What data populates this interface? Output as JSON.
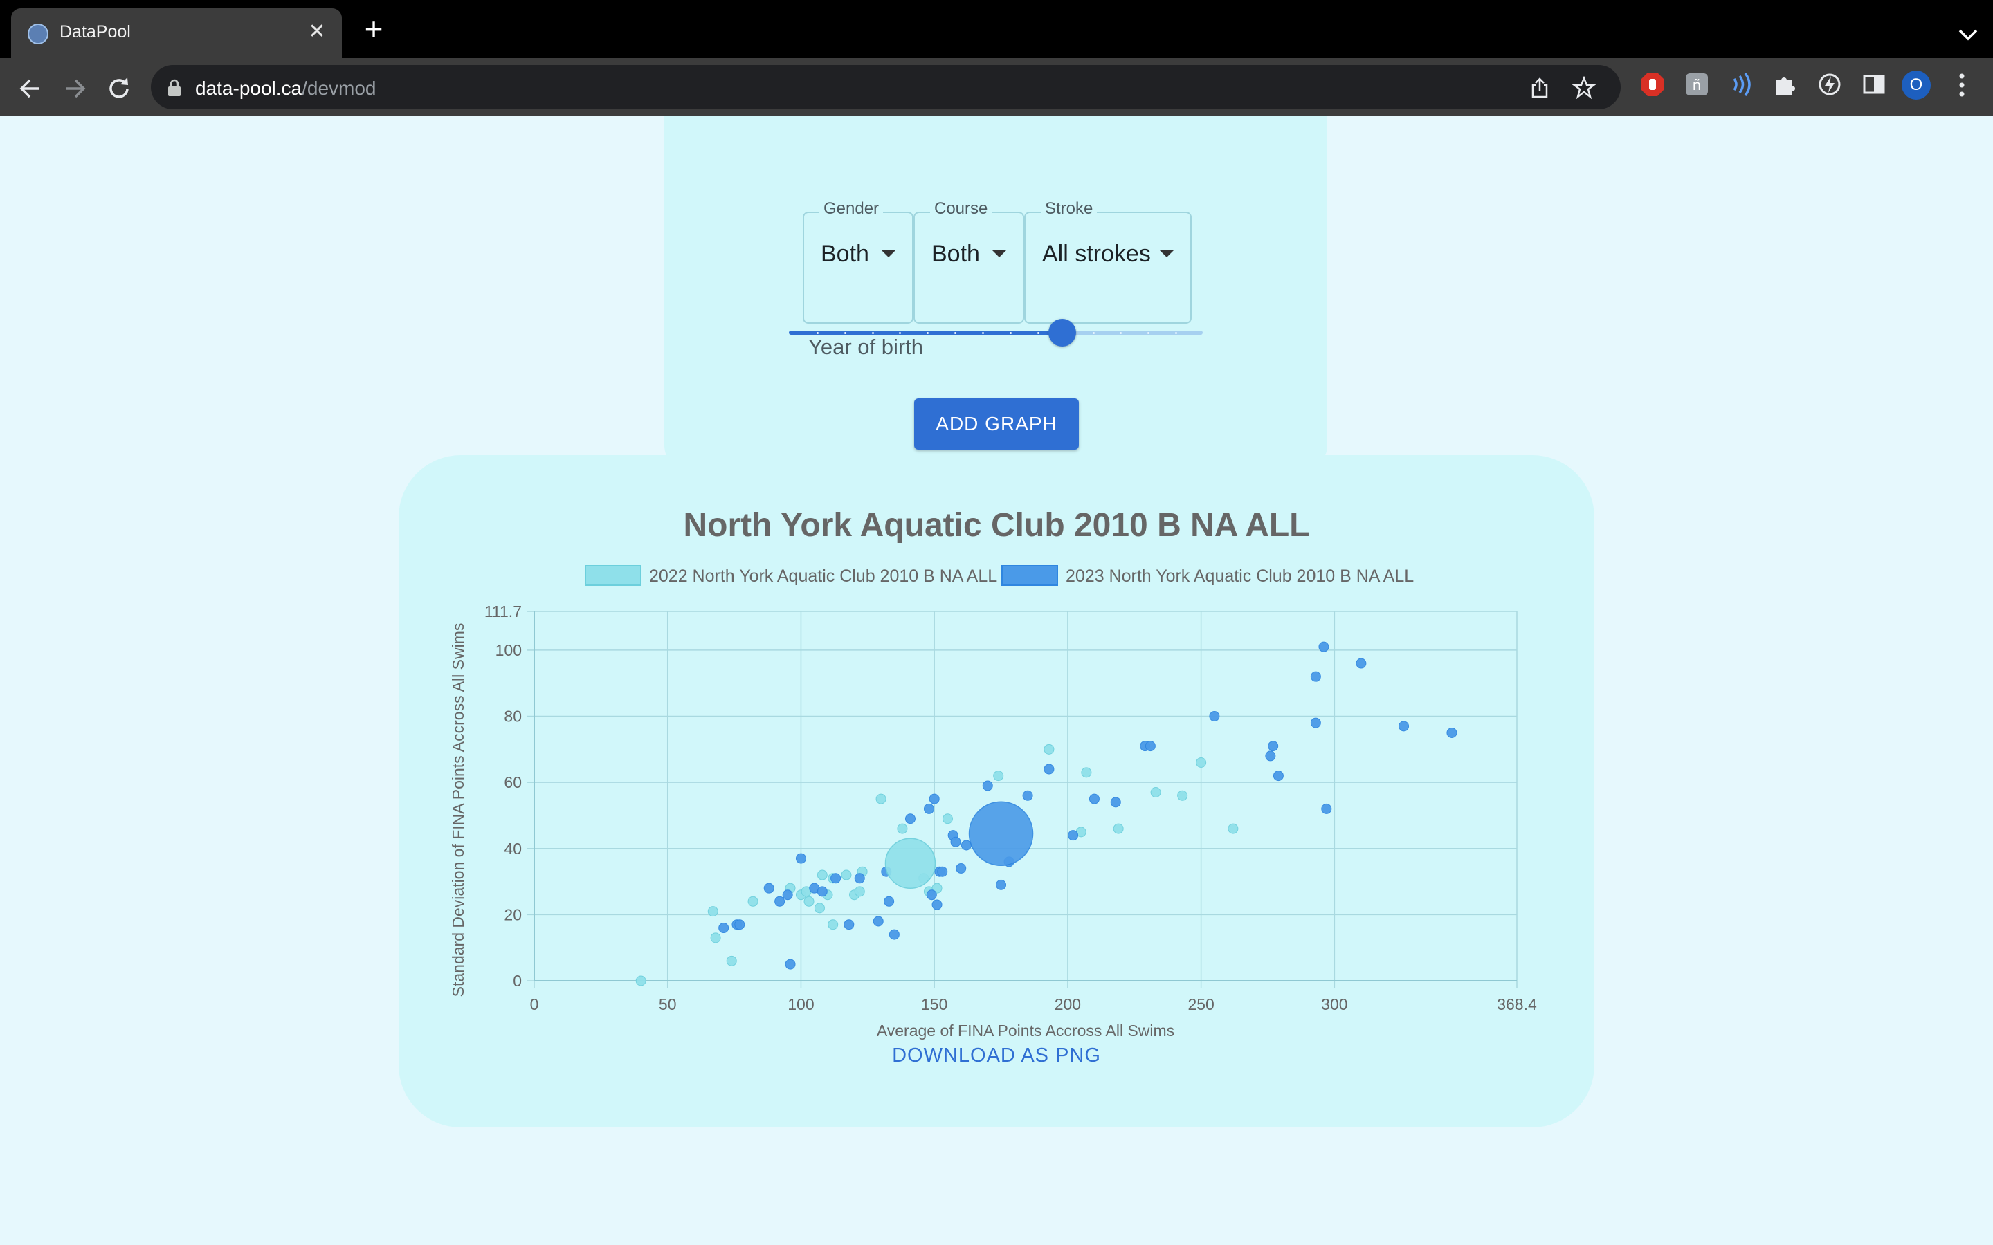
{
  "browser": {
    "tab_title": "DataPool",
    "url_host": "data-pool.ca",
    "url_path": "/devmod",
    "profile_initial": "O"
  },
  "form": {
    "gender": {
      "label": "Gender",
      "value": "Both"
    },
    "course": {
      "label": "Course",
      "value": "Both"
    },
    "stroke": {
      "label": "Stroke",
      "value": "All strokes"
    },
    "slider_label": "Year of birth",
    "slider_level": 0.66,
    "add_button": "ADD GRAPH"
  },
  "chart_card": {
    "download_label": "DOWNLOAD AS PNG"
  },
  "colors": {
    "series_2022": "#8fe0ea",
    "series_2023": "#4a9ae8",
    "accent": "#2f6fd3"
  },
  "chart_data": {
    "type": "scatter",
    "title": "North York Aquatic Club 2010 B NA ALL",
    "xlabel": "Average of FINA Points Accross All Swims",
    "ylabel": "Standard Deviation of FINA Points Accross All Swims",
    "xlim": [
      0,
      368.4
    ],
    "ylim": [
      0,
      111.7
    ],
    "x_ticks": [
      "0",
      "50",
      "100",
      "150",
      "200",
      "250",
      "300",
      "368.4"
    ],
    "y_ticks": [
      "0",
      "20",
      "40",
      "60",
      "80",
      "100",
      "111.7"
    ],
    "x_tick_values": [
      0,
      50,
      100,
      150,
      200,
      250,
      300,
      368.4
    ],
    "y_tick_values": [
      0,
      20,
      40,
      60,
      80,
      100,
      111.7
    ],
    "legend_position": "top",
    "grid": true,
    "series": [
      {
        "name": "2022 North York Aquatic Club 2010 B NA ALL",
        "summary": {
          "x": 141,
          "y": 35.5
        },
        "points": [
          [
            40,
            0
          ],
          [
            67,
            21
          ],
          [
            68,
            13
          ],
          [
            74,
            6
          ],
          [
            82,
            24
          ],
          [
            96,
            28
          ],
          [
            100,
            26
          ],
          [
            102,
            27
          ],
          [
            103,
            24
          ],
          [
            107,
            22
          ],
          [
            108,
            32
          ],
          [
            110,
            26
          ],
          [
            112,
            31
          ],
          [
            112,
            17
          ],
          [
            117,
            32
          ],
          [
            120,
            26
          ],
          [
            122,
            27
          ],
          [
            123,
            33
          ],
          [
            130,
            55
          ],
          [
            138,
            46
          ],
          [
            146,
            31
          ],
          [
            148,
            27
          ],
          [
            151,
            28
          ],
          [
            155,
            49
          ],
          [
            174,
            62
          ],
          [
            193,
            70
          ],
          [
            207,
            63
          ],
          [
            205,
            45
          ],
          [
            219,
            46
          ],
          [
            233,
            57
          ],
          [
            243,
            56
          ],
          [
            250,
            66
          ],
          [
            262,
            46
          ]
        ]
      },
      {
        "name": "2023 North York Aquatic Club 2010 B NA ALL",
        "summary": {
          "x": 175,
          "y": 44.5
        },
        "points": [
          [
            71,
            16
          ],
          [
            76,
            17
          ],
          [
            77,
            17
          ],
          [
            88,
            28
          ],
          [
            92,
            24
          ],
          [
            95,
            26
          ],
          [
            96,
            5
          ],
          [
            100,
            37
          ],
          [
            105,
            28
          ],
          [
            108,
            27
          ],
          [
            113,
            31
          ],
          [
            118,
            17
          ],
          [
            122,
            31
          ],
          [
            129,
            18
          ],
          [
            132,
            33
          ],
          [
            133,
            24
          ],
          [
            135,
            14
          ],
          [
            141,
            49
          ],
          [
            148,
            52
          ],
          [
            149,
            26
          ],
          [
            150,
            55
          ],
          [
            151,
            23
          ],
          [
            152,
            33
          ],
          [
            153,
            33
          ],
          [
            157,
            44
          ],
          [
            158,
            42
          ],
          [
            160,
            34
          ],
          [
            162,
            41
          ],
          [
            170,
            59
          ],
          [
            175,
            29
          ],
          [
            178,
            36
          ],
          [
            185,
            56
          ],
          [
            193,
            64
          ],
          [
            202,
            44
          ],
          [
            210,
            55
          ],
          [
            218,
            54
          ],
          [
            229,
            71
          ],
          [
            231,
            71
          ],
          [
            255,
            80
          ],
          [
            276,
            68
          ],
          [
            277,
            71
          ],
          [
            279,
            62
          ],
          [
            293,
            92
          ],
          [
            293,
            78
          ],
          [
            296,
            101
          ],
          [
            297,
            52
          ],
          [
            310,
            96
          ],
          [
            326,
            77
          ],
          [
            344,
            75
          ]
        ]
      }
    ]
  }
}
